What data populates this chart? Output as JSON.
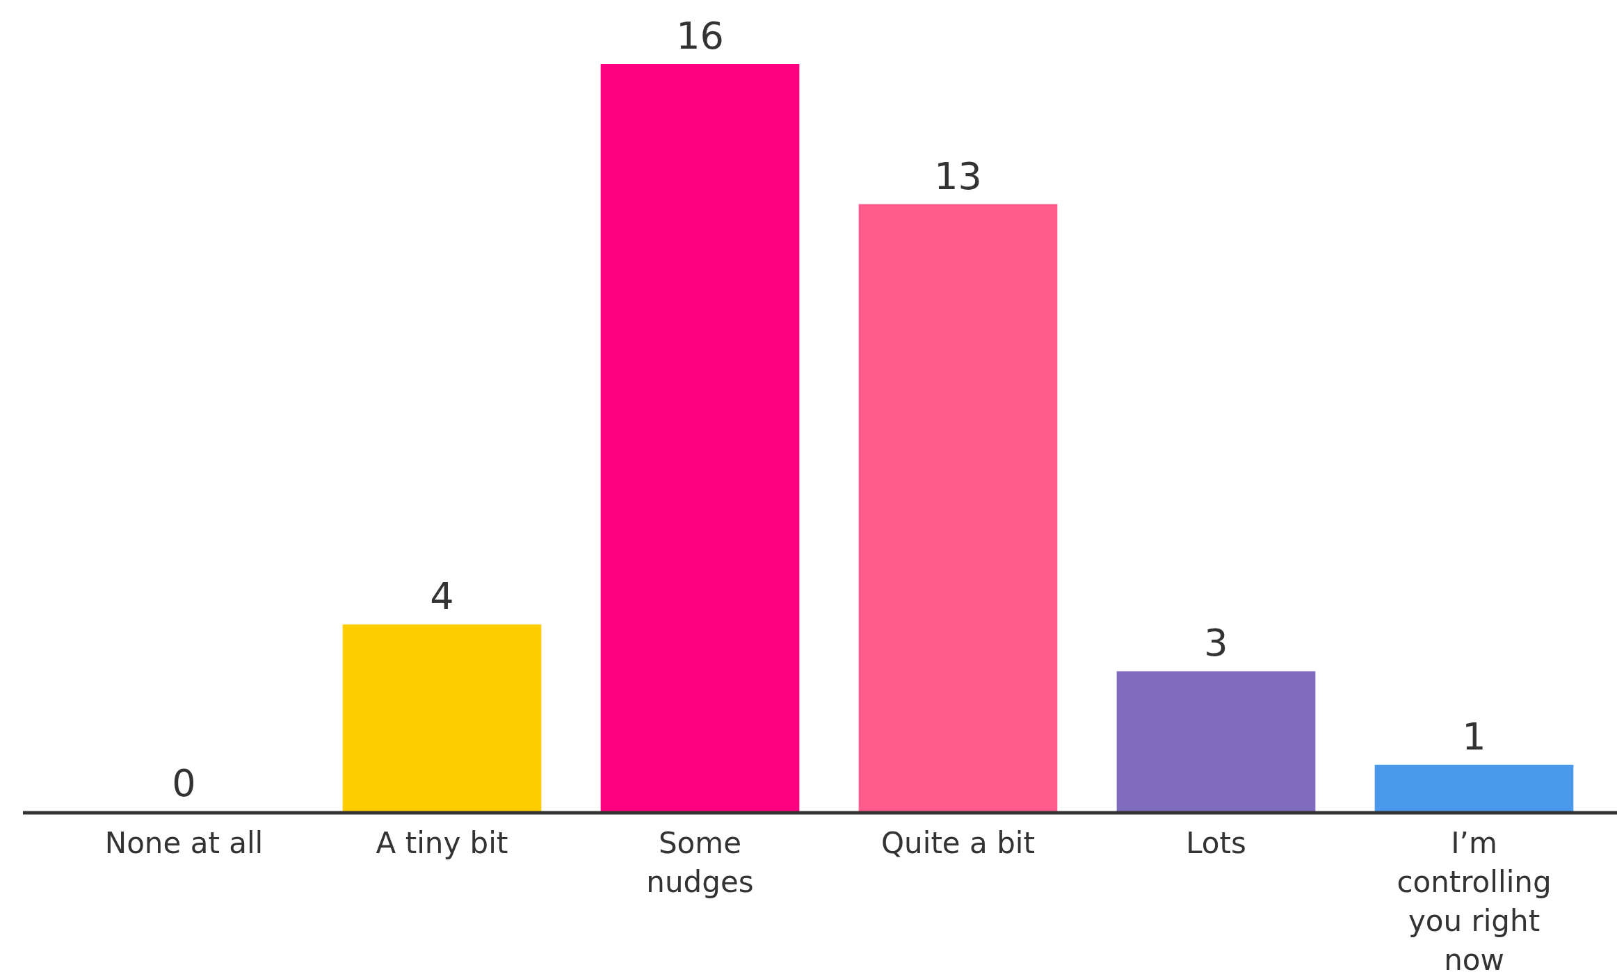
{
  "chart_data": {
    "type": "bar",
    "categories": [
      "None at all",
      "A tiny bit",
      "Some\nnudges",
      "Quite a bit",
      "Lots",
      "I’m\ncontrolling\nyou right\nnow"
    ],
    "values": [
      0,
      4,
      16,
      13,
      3,
      1
    ],
    "colors": [
      "#ffcc00",
      "#ffcc00",
      "#ff0080",
      "#ff5a8c",
      "#7e6bbd",
      "#4a98ec"
    ],
    "data_labels": true
  }
}
